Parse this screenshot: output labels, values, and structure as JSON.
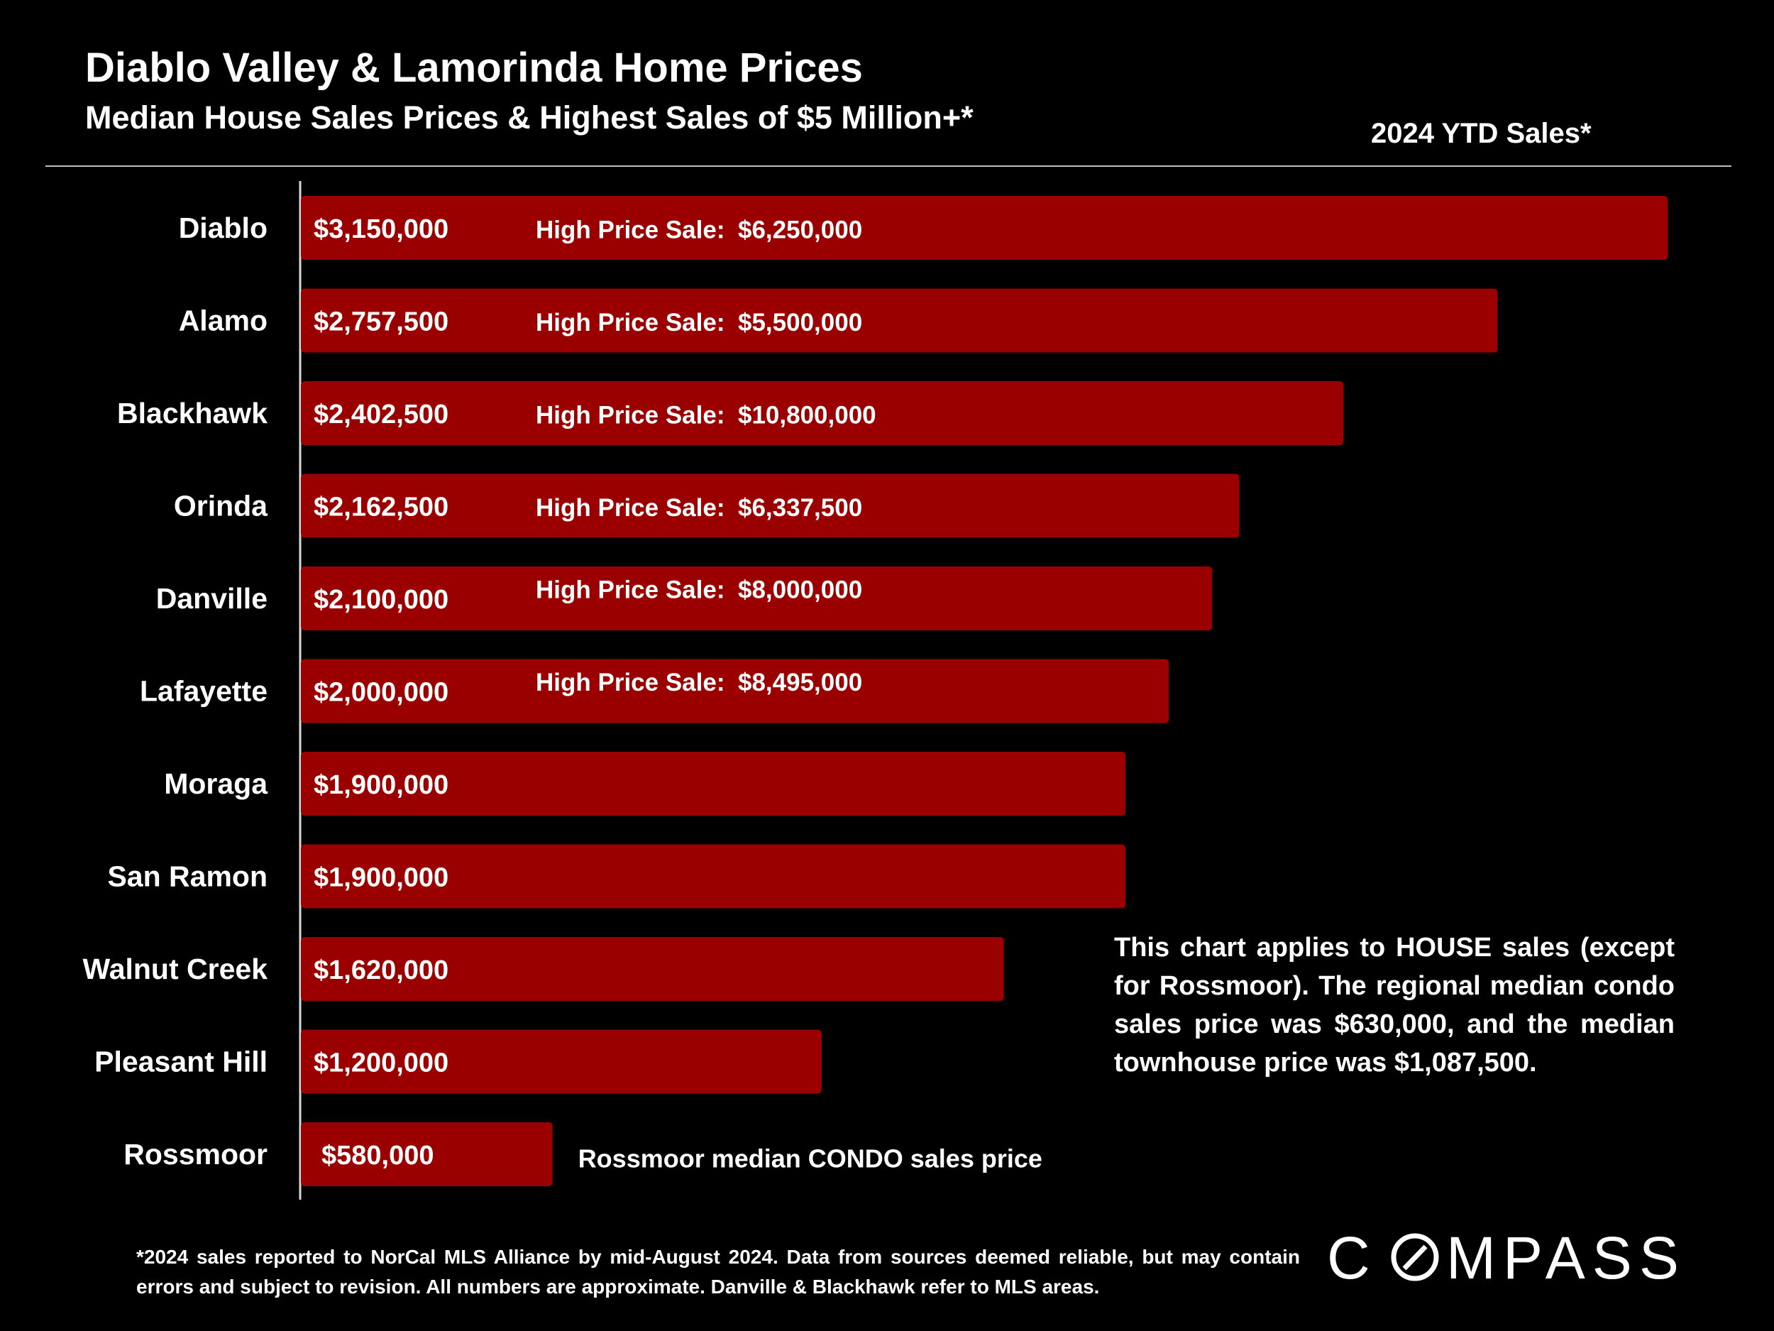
{
  "header": {
    "title": "Diablo Valley & Lamorinda Home Prices",
    "subtitle": "Median House Sales Prices & Highest Sales of $5 Million+*",
    "period_label": "2024 YTD Sales*"
  },
  "chart_data": {
    "type": "bar",
    "orientation": "horizontal",
    "title": "Diablo Valley & Lamorinda Home Prices",
    "subtitle": "Median House Sales Prices & Highest Sales of $5 Million+*",
    "xlabel": "",
    "ylabel": "",
    "xlim": [
      0,
      3290000
    ],
    "grid": false,
    "bar_color": "#9b0000",
    "categories": [
      "Diablo",
      "Alamo",
      "Blackhawk",
      "Orinda",
      "Danville",
      "Lafayette",
      "Moraga",
      "San Ramon",
      "Walnut Creek",
      "Pleasant Hill",
      "Rossmoor"
    ],
    "values": [
      3150000,
      2757500,
      2402500,
      2162500,
      2100000,
      2000000,
      1900000,
      1900000,
      1620000,
      1200000,
      580000
    ],
    "value_labels": [
      "$3,150,000",
      "$2,757,500",
      "$2,402,500",
      "$2,162,500",
      "$2,100,000",
      "$2,000,000",
      "$1,900,000",
      "$1,900,000",
      "$1,620,000",
      "$1,200,000",
      "$580,000"
    ],
    "high_price_label": "High Price Sale:",
    "high_price_sales": [
      "$6,250,000",
      "$5,500,000",
      "$10,800,000",
      "$6,337,500",
      "$8,000,000",
      "$8,495,000",
      "",
      "",
      "",
      "",
      ""
    ],
    "annotation": "Rossmoor median CONDO sales price"
  },
  "note": "This chart applies to HOUSE sales (except for Rossmoor). The regional median condo sales price was $630,000, and the median townhouse price was $1,087,500.",
  "footnote": "*2024 sales reported to NorCal MLS Alliance by mid-August 2024. Data from sources deemed reliable, but may contain errors and subject to revision. All numbers are approximate. Danville & Blackhawk refer to MLS areas.",
  "brand": {
    "name": "COMPASS"
  }
}
